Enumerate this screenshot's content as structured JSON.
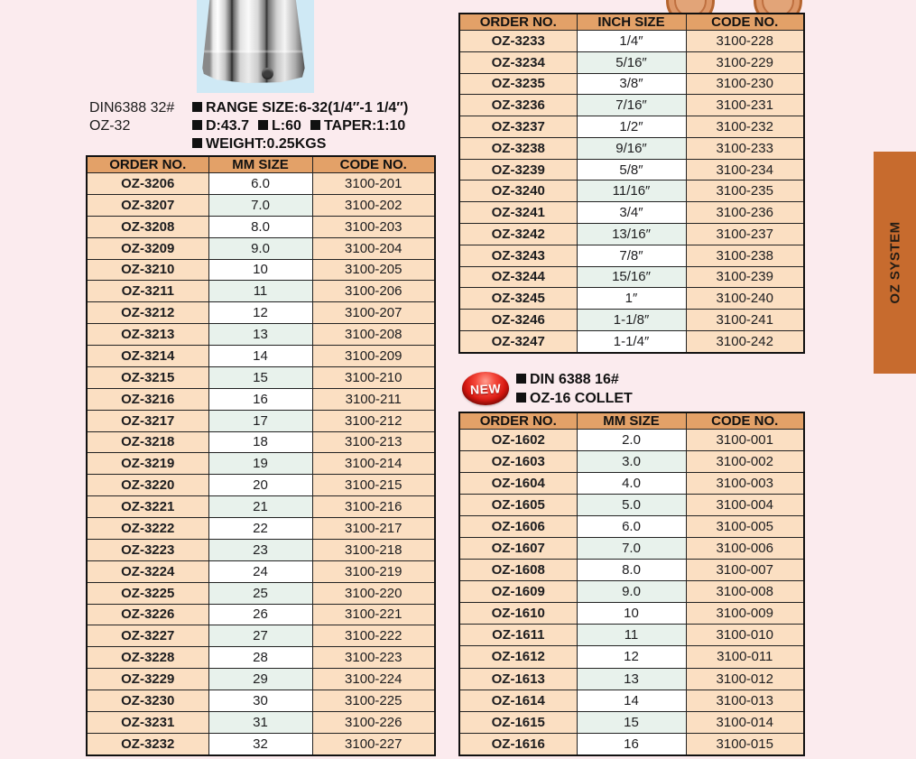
{
  "colors": {
    "page_bg": "#fbebee",
    "table_header_bg": "#e3a168",
    "cell_peach": "#fbdfc2",
    "cell_mint": "#e8f2ec",
    "cell_white": "#ffffff",
    "side_tab_bg": "#c76b2e",
    "badge_red": "#d6160f",
    "photo_bg": "#cfe9f5"
  },
  "product_oz32": {
    "model": [
      "DIN6388 32#",
      "OZ-32"
    ],
    "spec_lines": [
      [
        "RANGE SIZE:6-32(1/4″-1 1/4″)"
      ],
      [
        "D:43.7",
        "L:60",
        "TAPER:1:10"
      ],
      [
        "WEIGHT:0.25KGS"
      ]
    ]
  },
  "new_badge": {
    "label": "NEW"
  },
  "product_oz16": {
    "lines": [
      "DIN 6388 16#",
      "OZ-16 COLLET"
    ]
  },
  "side_tab": {
    "label": "OZ SYSTEM"
  },
  "tables": {
    "oz32_mm": {
      "headers": [
        "ORDER NO.",
        "MM SIZE",
        "CODE NO."
      ],
      "rows": [
        [
          "OZ-3206",
          "6.0",
          "3100-201"
        ],
        [
          "OZ-3207",
          "7.0",
          "3100-202"
        ],
        [
          "OZ-3208",
          "8.0",
          "3100-203"
        ],
        [
          "OZ-3209",
          "9.0",
          "3100-204"
        ],
        [
          "OZ-3210",
          "10",
          "3100-205"
        ],
        [
          "OZ-3211",
          "11",
          "3100-206"
        ],
        [
          "OZ-3212",
          "12",
          "3100-207"
        ],
        [
          "OZ-3213",
          "13",
          "3100-208"
        ],
        [
          "OZ-3214",
          "14",
          "3100-209"
        ],
        [
          "OZ-3215",
          "15",
          "3100-210"
        ],
        [
          "OZ-3216",
          "16",
          "3100-211"
        ],
        [
          "OZ-3217",
          "17",
          "3100-212"
        ],
        [
          "OZ-3218",
          "18",
          "3100-213"
        ],
        [
          "OZ-3219",
          "19",
          "3100-214"
        ],
        [
          "OZ-3220",
          "20",
          "3100-215"
        ],
        [
          "OZ-3221",
          "21",
          "3100-216"
        ],
        [
          "OZ-3222",
          "22",
          "3100-217"
        ],
        [
          "OZ-3223",
          "23",
          "3100-218"
        ],
        [
          "OZ-3224",
          "24",
          "3100-219"
        ],
        [
          "OZ-3225",
          "25",
          "3100-220"
        ],
        [
          "OZ-3226",
          "26",
          "3100-221"
        ],
        [
          "OZ-3227",
          "27",
          "3100-222"
        ],
        [
          "OZ-3228",
          "28",
          "3100-223"
        ],
        [
          "OZ-3229",
          "29",
          "3100-224"
        ],
        [
          "OZ-3230",
          "30",
          "3100-225"
        ],
        [
          "OZ-3231",
          "31",
          "3100-226"
        ],
        [
          "OZ-3232",
          "32",
          "3100-227"
        ]
      ]
    },
    "oz32_inch": {
      "headers": [
        "ORDER NO.",
        "INCH SIZE",
        "CODE NO."
      ],
      "rows": [
        [
          "OZ-3233",
          "1/4″",
          "3100-228"
        ],
        [
          "OZ-3234",
          "5/16″",
          "3100-229"
        ],
        [
          "OZ-3235",
          "3/8″",
          "3100-230"
        ],
        [
          "OZ-3236",
          "7/16″",
          "3100-231"
        ],
        [
          "OZ-3237",
          "1/2″",
          "3100-232"
        ],
        [
          "OZ-3238",
          "9/16″",
          "3100-233"
        ],
        [
          "OZ-3239",
          "5/8″",
          "3100-234"
        ],
        [
          "OZ-3240",
          "11/16″",
          "3100-235"
        ],
        [
          "OZ-3241",
          "3/4″",
          "3100-236"
        ],
        [
          "OZ-3242",
          "13/16″",
          "3100-237"
        ],
        [
          "OZ-3243",
          "7/8″",
          "3100-238"
        ],
        [
          "OZ-3244",
          "15/16″",
          "3100-239"
        ],
        [
          "OZ-3245",
          "1″",
          "3100-240"
        ],
        [
          "OZ-3246",
          "1-1/8″",
          "3100-241"
        ],
        [
          "OZ-3247",
          "1-1/4″",
          "3100-242"
        ]
      ]
    },
    "oz16_mm": {
      "headers": [
        "ORDER NO.",
        "MM SIZE",
        "CODE NO."
      ],
      "rows": [
        [
          "OZ-1602",
          "2.0",
          "3100-001"
        ],
        [
          "OZ-1603",
          "3.0",
          "3100-002"
        ],
        [
          "OZ-1604",
          "4.0",
          "3100-003"
        ],
        [
          "OZ-1605",
          "5.0",
          "3100-004"
        ],
        [
          "OZ-1606",
          "6.0",
          "3100-005"
        ],
        [
          "OZ-1607",
          "7.0",
          "3100-006"
        ],
        [
          "OZ-1608",
          "8.0",
          "3100-007"
        ],
        [
          "OZ-1609",
          "9.0",
          "3100-008"
        ],
        [
          "OZ-1610",
          "10",
          "3100-009"
        ],
        [
          "OZ-1611",
          "11",
          "3100-010"
        ],
        [
          "OZ-1612",
          "12",
          "3100-011"
        ],
        [
          "OZ-1613",
          "13",
          "3100-012"
        ],
        [
          "OZ-1614",
          "14",
          "3100-013"
        ],
        [
          "OZ-1615",
          "15",
          "3100-014"
        ],
        [
          "OZ-1616",
          "16",
          "3100-015"
        ]
      ]
    }
  }
}
